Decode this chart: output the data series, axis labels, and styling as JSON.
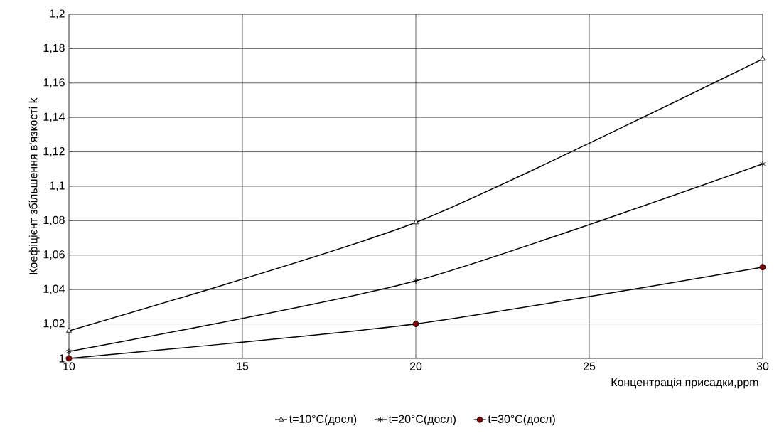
{
  "chart_data": {
    "type": "line",
    "xlabel": "Концентрація присадки,ppm",
    "ylabel": "Коефіцієнт збільшення в'язкості k",
    "x": [
      10,
      20,
      30
    ],
    "series": [
      {
        "name": "t=10°C(досл)",
        "color": "#000000",
        "marker": "triangle",
        "values": [
          1.016,
          1.079,
          1.174
        ]
      },
      {
        "name": "t=20°C(досл)",
        "color": "#000000",
        "marker": "cross",
        "values": [
          1.004,
          1.045,
          1.113
        ]
      },
      {
        "name": "t=30°C(досл)",
        "color": "#800000",
        "marker": "circle",
        "values": [
          1.0,
          1.02,
          1.053
        ]
      }
    ],
    "xlim": [
      10,
      30
    ],
    "xticks": [
      10,
      15,
      20,
      25,
      30
    ],
    "ylim": [
      1,
      1.2
    ],
    "yticks": [
      1,
      {
        "value": 1.02,
        "label": "1,02"
      },
      {
        "value": 1.04,
        "label": "1,04"
      },
      {
        "value": 1.06,
        "label": "1,06"
      },
      {
        "value": 1.08,
        "label": "1,08"
      },
      {
        "value": 1.1,
        "label": "1,1"
      },
      {
        "value": 1.12,
        "label": "1,12"
      },
      {
        "value": 1.14,
        "label": "1,14"
      },
      {
        "value": 1.16,
        "label": "1,16"
      },
      {
        "value": 1.18,
        "label": "1,18"
      },
      {
        "value": 1.2,
        "label": "1,2"
      }
    ],
    "grid": true,
    "legend": "bottom",
    "line_style": "solid"
  }
}
